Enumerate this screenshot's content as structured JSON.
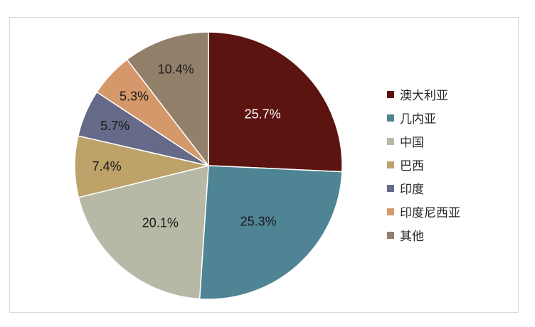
{
  "chart_data": {
    "type": "pie",
    "title": "",
    "categories": [
      "澳大利亚",
      "几内亚",
      "中国",
      "巴西",
      "印度",
      "印度尼西亚",
      "其他"
    ],
    "values": [
      25.7,
      25.3,
      20.1,
      7.4,
      5.7,
      5.3,
      10.4
    ],
    "labels": [
      "25.7%",
      "25.3%",
      "20.1%",
      "7.4%",
      "5.7%",
      "5.3%",
      "10.4%"
    ],
    "colors": [
      "#5c1410",
      "#4f8494",
      "#b7b9a6",
      "#bda26a",
      "#646a87",
      "#d5986b",
      "#93806a"
    ],
    "label_colors": [
      "#ffffff",
      "#1a1a1a",
      "#1a1a1a",
      "#1a1a1a",
      "#1a1a1a",
      "#1a1a1a",
      "#1a1a1a"
    ],
    "start_angle": "12 o'clock",
    "direction": "clockwise",
    "legend": "right"
  }
}
